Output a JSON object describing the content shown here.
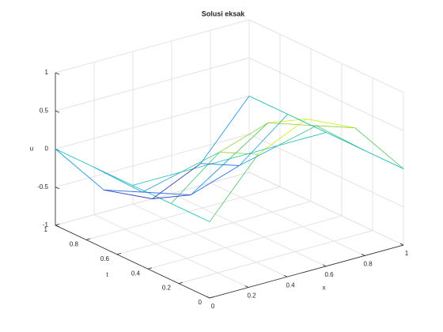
{
  "chart_data": {
    "type": "mesh",
    "title": "Solusi eksak",
    "xlabel": "x",
    "ylabel": "t",
    "zlabel": "u",
    "x": [
      0,
      0.25,
      0.5,
      0.75,
      1
    ],
    "y": [
      0,
      0.25,
      0.5,
      0.75,
      1
    ],
    "z": [
      [
        0,
        0.71,
        1,
        0.71,
        0
      ],
      [
        0,
        0.5,
        0.71,
        0.5,
        0
      ],
      [
        0,
        0,
        0,
        0,
        0
      ],
      [
        0,
        -0.5,
        -0.71,
        -0.5,
        0
      ],
      [
        0,
        -0.71,
        -1,
        -0.71,
        0
      ]
    ],
    "xlim": [
      0,
      1
    ],
    "ylim": [
      0,
      1
    ],
    "zlim": [
      -1,
      1
    ],
    "xticks": [
      0,
      0.2,
      0.4,
      0.6,
      0.8,
      1
    ],
    "yticks": [
      0,
      0.2,
      0.4,
      0.6,
      0.8,
      1
    ],
    "zticks": [
      -1,
      -0.5,
      0,
      0.5,
      1
    ],
    "grid": true,
    "colormap": [
      "#3e26a8",
      "#2e87f5",
      "#19bfb7",
      "#80cb58",
      "#f9fb15"
    ]
  }
}
